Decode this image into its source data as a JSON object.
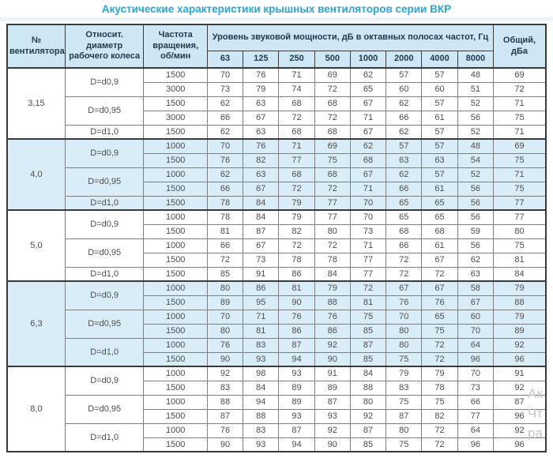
{
  "title": "Акустические характеристики крышных вентиляторов серии ВКР",
  "colors": {
    "title_text": "#29a5da",
    "header_bg": "#cde7f5",
    "shaded_section_bg": "#d9edf8",
    "border_dark": "#3a3a3a",
    "border_light": "#7f7f7f",
    "cell_text": "#4d4d4d"
  },
  "table": {
    "headers": {
      "fan": "№ вентилятора",
      "diameter": "Относит. диаметр рабочего колеса",
      "rpm": "Частота вращения, об/мин",
      "levels": "Уровень звуковой мощности, дБ в октавных полосах частот, Гц",
      "total": "Общий, дБа"
    },
    "freq_labels": [
      "63",
      "125",
      "250",
      "500",
      "1000",
      "2000",
      "4000",
      "8000"
    ],
    "sections": [
      {
        "fan": "3,15",
        "shaded": false,
        "groups": [
          {
            "diameter": "D=d0,9",
            "rows": [
              {
                "rpm": "1500",
                "levels": [
                  70,
                  76,
                  71,
                  69,
                  62,
                  57,
                  57,
                  48
                ],
                "total": 69
              },
              {
                "rpm": "3000",
                "levels": [
                  73,
                  79,
                  74,
                  72,
                  65,
                  60,
                  60,
                  51
                ],
                "total": 72
              }
            ]
          },
          {
            "diameter": "D=d0,95",
            "rows": [
              {
                "rpm": "1500",
                "levels": [
                  62,
                  63,
                  68,
                  68,
                  67,
                  62,
                  57,
                  52
                ],
                "total": 71
              },
              {
                "rpm": "3000",
                "levels": [
                  66,
                  67,
                  72,
                  72,
                  71,
                  66,
                  61,
                  56
                ],
                "total": 75
              }
            ]
          },
          {
            "diameter": "D=d1,0",
            "rows": [
              {
                "rpm": "1500",
                "levels": [
                  62,
                  63,
                  68,
                  68,
                  67,
                  62,
                  57,
                  52
                ],
                "total": 71
              }
            ]
          }
        ]
      },
      {
        "fan": "4,0",
        "shaded": true,
        "groups": [
          {
            "diameter": "D=d0,9",
            "rows": [
              {
                "rpm": "1000",
                "levels": [
                  70,
                  76,
                  71,
                  69,
                  62,
                  57,
                  57,
                  48
                ],
                "total": 69
              },
              {
                "rpm": "1500",
                "levels": [
                  76,
                  82,
                  77,
                  75,
                  68,
                  63,
                  63,
                  54
                ],
                "total": 75
              }
            ]
          },
          {
            "diameter": "D=d0,95",
            "rows": [
              {
                "rpm": "1000",
                "levels": [
                  62,
                  63,
                  68,
                  68,
                  67,
                  62,
                  57,
                  52
                ],
                "total": 71
              },
              {
                "rpm": "1500",
                "levels": [
                  66,
                  67,
                  72,
                  72,
                  71,
                  66,
                  61,
                  56
                ],
                "total": 75
              }
            ]
          },
          {
            "diameter": "D=d1,0",
            "rows": [
              {
                "rpm": "1500",
                "levels": [
                  78,
                  84,
                  79,
                  77,
                  70,
                  65,
                  65,
                  56
                ],
                "total": 77
              }
            ]
          }
        ]
      },
      {
        "fan": "5,0",
        "shaded": false,
        "groups": [
          {
            "diameter": "D=d0,9",
            "rows": [
              {
                "rpm": "1000",
                "levels": [
                  78,
                  84,
                  79,
                  77,
                  70,
                  65,
                  65,
                  56
                ],
                "total": 77
              },
              {
                "rpm": "1500",
                "levels": [
                  81,
                  87,
                  82,
                  80,
                  73,
                  68,
                  68,
                  59
                ],
                "total": 80
              }
            ]
          },
          {
            "diameter": "D=d0,95",
            "rows": [
              {
                "rpm": "1000",
                "levels": [
                  66,
                  67,
                  72,
                  72,
                  71,
                  66,
                  61,
                  56
                ],
                "total": 75
              },
              {
                "rpm": "1500",
                "levels": [
                  72,
                  73,
                  78,
                  78,
                  77,
                  72,
                  67,
                  62
                ],
                "total": 81
              }
            ]
          },
          {
            "diameter": "D=d1,0",
            "rows": [
              {
                "rpm": "1500",
                "levels": [
                  85,
                  91,
                  86,
                  84,
                  77,
                  72,
                  72,
                  63
                ],
                "total": 84
              }
            ]
          }
        ]
      },
      {
        "fan": "6,3",
        "shaded": true,
        "groups": [
          {
            "diameter": "D=d0,9",
            "rows": [
              {
                "rpm": "1000",
                "levels": [
                  80,
                  86,
                  81,
                  79,
                  72,
                  67,
                  67,
                  58
                ],
                "total": 79
              },
              {
                "rpm": "1500",
                "levels": [
                  89,
                  95,
                  90,
                  88,
                  81,
                  76,
                  76,
                  67
                ],
                "total": 88
              }
            ]
          },
          {
            "diameter": "D=d0,95",
            "rows": [
              {
                "rpm": "1000",
                "levels": [
                  70,
                  71,
                  76,
                  76,
                  75,
                  70,
                  65,
                  60
                ],
                "total": 79
              },
              {
                "rpm": "1500",
                "levels": [
                  80,
                  81,
                  86,
                  86,
                  85,
                  80,
                  75,
                  70
                ],
                "total": 89
              }
            ]
          },
          {
            "diameter": "D=d1,0",
            "rows": [
              {
                "rpm": "1000",
                "levels": [
                  76,
                  83,
                  87,
                  92,
                  87,
                  80,
                  72,
                  64
                ],
                "total": 92
              },
              {
                "rpm": "1500",
                "levels": [
                  90,
                  93,
                  94,
                  90,
                  85,
                  75,
                  72,
                  96
                ],
                "total": 96
              }
            ]
          }
        ]
      },
      {
        "fan": "8,0",
        "shaded": false,
        "groups": [
          {
            "diameter": "D=d0,9",
            "rows": [
              {
                "rpm": "1000",
                "levels": [
                  92,
                  98,
                  93,
                  91,
                  84,
                  79,
                  79,
                  70
                ],
                "total": 91
              },
              {
                "rpm": "1500",
                "levels": [
                  83,
                  84,
                  89,
                  89,
                  88,
                  83,
                  78,
                  73
                ],
                "total": 92
              }
            ]
          },
          {
            "diameter": "D=d0,95",
            "rows": [
              {
                "rpm": "1000",
                "levels": [
                  88,
                  94,
                  89,
                  87,
                  80,
                  75,
                  75,
                  66
                ],
                "total": 87
              },
              {
                "rpm": "1500",
                "levels": [
                  87,
                  88,
                  93,
                  93,
                  92,
                  87,
                  82,
                  77
                ],
                "total": 96
              }
            ]
          },
          {
            "diameter": "D=d1,0",
            "rows": [
              {
                "rpm": "1000",
                "levels": [
                  76,
                  83,
                  87,
                  92,
                  87,
                  80,
                  72,
                  64
                ],
                "total": 92
              },
              {
                "rpm": "1500",
                "levels": [
                  90,
                  93,
                  94,
                  90,
                  85,
                  75,
                  72,
                  96
                ],
                "total": 96
              }
            ]
          }
        ]
      }
    ]
  },
  "watermark": {
    "lines": [
      "Ак",
      "Чт",
      "ра"
    ]
  }
}
